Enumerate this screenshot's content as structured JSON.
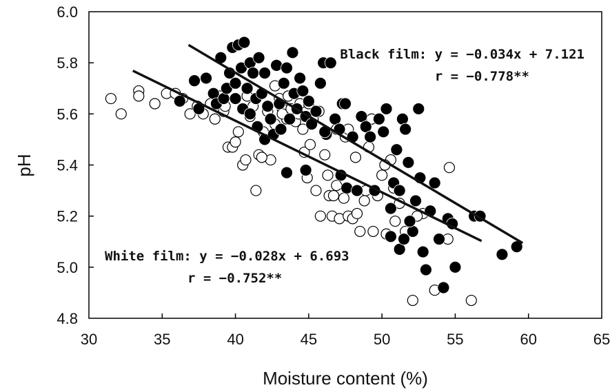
{
  "chart_data": {
    "type": "scatter",
    "title": "",
    "xlabel": "Moisture content (%)",
    "ylabel": "pH",
    "xlim": [
      30,
      65
    ],
    "ylim": [
      4.8,
      6.0
    ],
    "x_ticks": [
      "30",
      "35",
      "40",
      "45",
      "50",
      "55",
      "60",
      "65"
    ],
    "y_ticks": [
      "4.8",
      "5.0",
      "5.2",
      "5.4",
      "5.6",
      "5.8",
      "6.0"
    ],
    "grid": false,
    "legend": "none",
    "series": [
      {
        "name": "Black film",
        "marker": "filled-circle",
        "color": "#000000",
        "points": [
          [
            36.2,
            5.65
          ],
          [
            37.2,
            5.73
          ],
          [
            37.5,
            5.62
          ],
          [
            38,
            5.74
          ],
          [
            38.5,
            5.68
          ],
          [
            38.7,
            5.64
          ],
          [
            39,
            5.82
          ],
          [
            39.2,
            5.66
          ],
          [
            39.4,
            5.7
          ],
          [
            39.6,
            5.76
          ],
          [
            39.8,
            5.86
          ],
          [
            40,
            5.66
          ],
          [
            40,
            5.72
          ],
          [
            40.2,
            5.87
          ],
          [
            40.4,
            5.78
          ],
          [
            40.5,
            5.62
          ],
          [
            40.6,
            5.88
          ],
          [
            40.8,
            5.7
          ],
          [
            41,
            5.6
          ],
          [
            41,
            5.8
          ],
          [
            41.2,
            5.76
          ],
          [
            41.4,
            5.66
          ],
          [
            41.5,
            5.55
          ],
          [
            41.6,
            5.82
          ],
          [
            41.8,
            5.68
          ],
          [
            42,
            5.76
          ],
          [
            42,
            5.5
          ],
          [
            42.2,
            5.63
          ],
          [
            42.4,
            5.58
          ],
          [
            42.6,
            5.52
          ],
          [
            42.8,
            5.79
          ],
          [
            43,
            5.64
          ],
          [
            43.1,
            5.54
          ],
          [
            43.3,
            5.72
          ],
          [
            43.5,
            5.78
          ],
          [
            43.7,
            5.58
          ],
          [
            43.9,
            5.84
          ],
          [
            44,
            5.68
          ],
          [
            44.2,
            5.62
          ],
          [
            44.4,
            5.74
          ],
          [
            44.6,
            5.69
          ],
          [
            44.8,
            5.59
          ],
          [
            45,
            5.65
          ],
          [
            45.2,
            5.56
          ],
          [
            45.5,
            5.61
          ],
          [
            45.8,
            5.72
          ],
          [
            46,
            5.8
          ],
          [
            46.2,
            5.52
          ],
          [
            46.5,
            5.8
          ],
          [
            46.8,
            5.58
          ],
          [
            47.1,
            5.54
          ],
          [
            47.3,
            5.64
          ],
          [
            47.5,
            5.64
          ],
          [
            43.5,
            5.37
          ],
          [
            44.8,
            5.38
          ],
          [
            46.1,
            5.53
          ],
          [
            47.2,
            5.36
          ],
          [
            47.6,
            5.31
          ],
          [
            48,
            5.51
          ],
          [
            48.3,
            5.3
          ],
          [
            48.6,
            5.59
          ],
          [
            48.9,
            5.55
          ],
          [
            49.2,
            5.51
          ],
          [
            49.5,
            5.3
          ],
          [
            49.8,
            5.58
          ],
          [
            50.1,
            5.53
          ],
          [
            50.3,
            5.62
          ],
          [
            50.6,
            5.23
          ],
          [
            50.8,
            5.33
          ],
          [
            51,
            5.46
          ],
          [
            51.2,
            5.3
          ],
          [
            51.4,
            5.58
          ],
          [
            51.6,
            5.54
          ],
          [
            51.8,
            5.41
          ],
          [
            52.1,
            5.14
          ],
          [
            52.3,
            5.26
          ],
          [
            52.6,
            5.35
          ],
          [
            52.8,
            5.06
          ],
          [
            53,
            4.99
          ],
          [
            53.3,
            5.22
          ],
          [
            53.6,
            5.33
          ],
          [
            53.9,
            5.11
          ],
          [
            54.2,
            4.92
          ],
          [
            54.5,
            5.19
          ],
          [
            54.8,
            5.17
          ],
          [
            55,
            5.0
          ],
          [
            56.3,
            5.2
          ],
          [
            56.7,
            5.2
          ],
          [
            58.2,
            5.05
          ],
          [
            59.2,
            5.08
          ],
          [
            50.6,
            5.12
          ],
          [
            51.2,
            5.07
          ],
          [
            52.5,
            5.62
          ],
          [
            51.5,
            5.11
          ],
          [
            51.9,
            5.18
          ]
        ]
      },
      {
        "name": "White film",
        "marker": "open-circle",
        "color": "#000000",
        "points": [
          [
            31.5,
            5.66
          ],
          [
            32.2,
            5.6
          ],
          [
            33.4,
            5.69
          ],
          [
            33.4,
            5.67
          ],
          [
            34.5,
            5.64
          ],
          [
            35.3,
            5.68
          ],
          [
            35.9,
            5.68
          ],
          [
            36.4,
            5.66
          ],
          [
            36.9,
            5.6
          ],
          [
            37.4,
            5.63
          ],
          [
            37.8,
            5.6
          ],
          [
            38.3,
            5.64
          ],
          [
            38.6,
            5.58
          ],
          [
            38.9,
            5.67
          ],
          [
            39.2,
            5.61
          ],
          [
            39.5,
            5.47
          ],
          [
            39.8,
            5.47
          ],
          [
            40,
            5.49
          ],
          [
            40.2,
            5.53
          ],
          [
            40.5,
            5.4
          ],
          [
            40.7,
            5.42
          ],
          [
            41,
            5.59
          ],
          [
            41.2,
            5.63
          ],
          [
            41.4,
            5.3
          ],
          [
            41.6,
            5.44
          ],
          [
            41.9,
            5.53
          ],
          [
            42.2,
            5.61
          ],
          [
            42.4,
            5.42
          ],
          [
            42.7,
            5.56
          ],
          [
            43,
            5.66
          ],
          [
            43.2,
            5.62
          ],
          [
            43.5,
            5.58
          ],
          [
            43.8,
            5.62
          ],
          [
            44.1,
            5.57
          ],
          [
            44.4,
            5.64
          ],
          [
            44.7,
            5.45
          ],
          [
            44.9,
            5.35
          ],
          [
            45.1,
            5.48
          ],
          [
            45.3,
            5.58
          ],
          [
            45.5,
            5.3
          ],
          [
            45.8,
            5.2
          ],
          [
            46.1,
            5.44
          ],
          [
            46.4,
            5.28
          ],
          [
            46.6,
            5.2
          ],
          [
            46.9,
            5.32
          ],
          [
            47.1,
            5.19
          ],
          [
            47.4,
            5.27
          ],
          [
            47.7,
            5.2
          ],
          [
            48,
            5.19
          ],
          [
            48.3,
            5.21
          ],
          [
            48.5,
            5.14
          ],
          [
            48.8,
            5.26
          ],
          [
            49.1,
            5.47
          ],
          [
            49.4,
            5.14
          ],
          [
            49.7,
            5.28
          ],
          [
            50,
            5.36
          ],
          [
            50.3,
            5.13
          ],
          [
            50.6,
            5.42
          ],
          [
            50.9,
            5.18
          ],
          [
            51.2,
            5.25
          ],
          [
            52.1,
            4.87
          ],
          [
            52.8,
            5.21
          ],
          [
            53.6,
            4.91
          ],
          [
            54.6,
            5.39
          ],
          [
            54.5,
            5.11
          ],
          [
            56.1,
            4.87
          ],
          [
            43.6,
            5.67
          ],
          [
            44.3,
            5.6
          ],
          [
            45,
            5.64
          ],
          [
            46.9,
            5.54
          ],
          [
            47.5,
            5.51
          ],
          [
            48.2,
            5.43
          ],
          [
            49.3,
            5.58
          ],
          [
            50.2,
            5.4
          ],
          [
            50.8,
            5.31
          ],
          [
            39.3,
            5.63
          ],
          [
            40.8,
            5.67
          ],
          [
            42.7,
            5.71
          ],
          [
            44.6,
            5.54
          ],
          [
            46.3,
            5.36
          ],
          [
            47.7,
            5.54
          ],
          [
            48.9,
            5.3
          ],
          [
            51.6,
            5.14
          ],
          [
            52.4,
            5.2
          ],
          [
            41.8,
            5.43
          ],
          [
            43.2,
            5.6
          ],
          [
            45.7,
            5.61
          ],
          [
            46.7,
            5.28
          ]
        ]
      }
    ],
    "regression_lines": [
      {
        "name": "Black film",
        "slope": -0.034,
        "intercept": 7.121,
        "x_range": [
          36.8,
          59.6
        ]
      },
      {
        "name": "White film",
        "slope": -0.028,
        "intercept": 6.693,
        "x_range": [
          33.0,
          56.8
        ]
      }
    ],
    "annotations": {
      "black_eq": "Black film: y = −0.034x + 7.121",
      "black_r": "r = −0.778**",
      "white_eq": "White film: y = −0.028x + 6.693",
      "white_r": "r = −0.752**"
    }
  }
}
